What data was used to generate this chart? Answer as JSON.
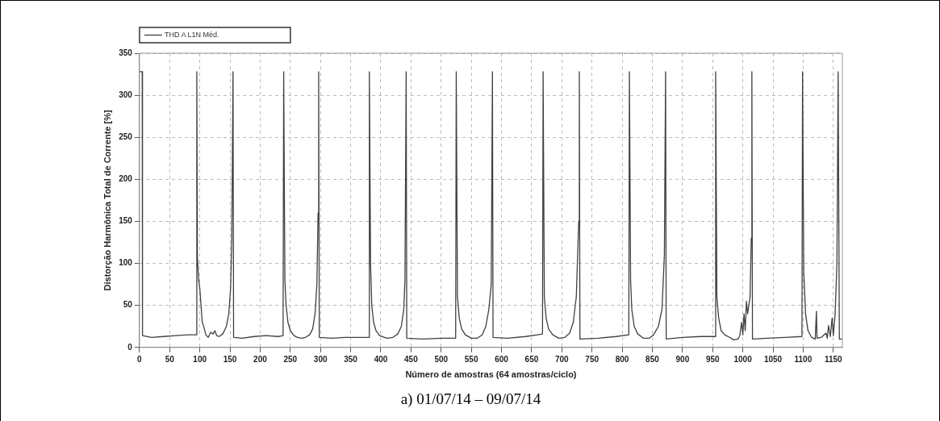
{
  "chart_data": {
    "type": "line",
    "xlabel": "Número de amostras (64 amostras/ciclo)",
    "ylabel": "Distorção Harmônica Total de Corrente [%]",
    "annotations": [
      "a) 01/07/14 – 09/07/14"
    ],
    "xlim": [
      0,
      1165
    ],
    "xticks": [
      0,
      50,
      100,
      150,
      200,
      250,
      300,
      350,
      400,
      450,
      500,
      550,
      600,
      650,
      700,
      750,
      800,
      850,
      900,
      950,
      1000,
      1050,
      1100,
      1150
    ],
    "ylim": [
      0,
      350
    ],
    "yticks": [
      0,
      50,
      100,
      150,
      200,
      250,
      300,
      350
    ],
    "grid": true,
    "legend": "top left",
    "marker": "none",
    "line_style": "solid",
    "series": [
      {
        "name": "THD A L1N Méd.",
        "color": "#404040",
        "x": [
          0,
          4.5,
          5,
          20,
          40,
          60,
          80,
          94,
          95,
          96,
          98,
          100,
          102,
          104,
          106,
          110,
          114,
          118,
          122,
          125,
          128,
          132,
          138,
          144,
          148,
          151,
          153,
          155,
          156,
          170,
          190,
          210,
          230,
          238,
          239,
          241,
          243,
          246,
          250,
          256,
          262,
          268,
          275,
          282,
          287,
          291,
          294,
          296,
          297,
          298,
          320,
          340,
          360,
          380,
          381,
          383,
          385,
          388,
          392,
          398,
          410,
          420,
          428,
          434,
          438,
          440,
          442,
          443,
          470,
          500,
          524,
          525,
          527,
          530,
          534,
          540,
          550,
          560,
          568,
          574,
          579,
          583,
          585,
          586,
          610,
          640,
          660,
          668,
          669,
          671,
          674,
          678,
          685,
          695,
          705,
          713,
          719,
          724,
          728,
          729,
          730,
          760,
          790,
          811,
          812,
          814,
          816,
          820,
          826,
          835,
          845,
          852,
          860,
          866,
          870,
          872,
          873,
          900,
          930,
          954,
          955,
          957,
          960,
          964,
          970,
          978,
          985,
          992,
          995,
          998,
          1000,
          1002,
          1004,
          1006,
          1008,
          1012,
          1014,
          1015,
          1016,
          1040,
          1070,
          1098,
          1099,
          1101,
          1104,
          1108,
          1114,
          1120,
          1122,
          1123,
          1130,
          1138,
          1140,
          1142,
          1145,
          1148,
          1150,
          1153,
          1156,
          1158,
          1160,
          1165
        ],
        "values": [
          328,
          328,
          14,
          12,
          13,
          14,
          15,
          15,
          328,
          108,
          80,
          70,
          50,
          30,
          26,
          15,
          12,
          18,
          16,
          20,
          14,
          13,
          16,
          25,
          40,
          70,
          130,
          328,
          12,
          11,
          13,
          14,
          13,
          14,
          328,
          80,
          50,
          30,
          20,
          14,
          12,
          11,
          12,
          15,
          22,
          40,
          75,
          160,
          328,
          12,
          11,
          12,
          12,
          12,
          328,
          100,
          50,
          30,
          20,
          14,
          11,
          12,
          16,
          25,
          45,
          80,
          328,
          11,
          10,
          11,
          11,
          328,
          60,
          35,
          22,
          15,
          11,
          11,
          15,
          25,
          45,
          75,
          328,
          12,
          11,
          13,
          15,
          16,
          328,
          60,
          35,
          22,
          15,
          11,
          12,
          17,
          30,
          60,
          150,
          328,
          10,
          11,
          13,
          15,
          328,
          80,
          45,
          25,
          16,
          11,
          11,
          15,
          25,
          45,
          110,
          328,
          10,
          12,
          13,
          13,
          328,
          60,
          35,
          20,
          15,
          12,
          9,
          10,
          14,
          30,
          15,
          40,
          20,
          55,
          40,
          60,
          130,
          328,
          10,
          11,
          12,
          13,
          328,
          90,
          40,
          20,
          12,
          10,
          43,
          11,
          12,
          17,
          11,
          26,
          13,
          35,
          14,
          40,
          100,
          328,
          10,
          10
        ]
      }
    ]
  }
}
